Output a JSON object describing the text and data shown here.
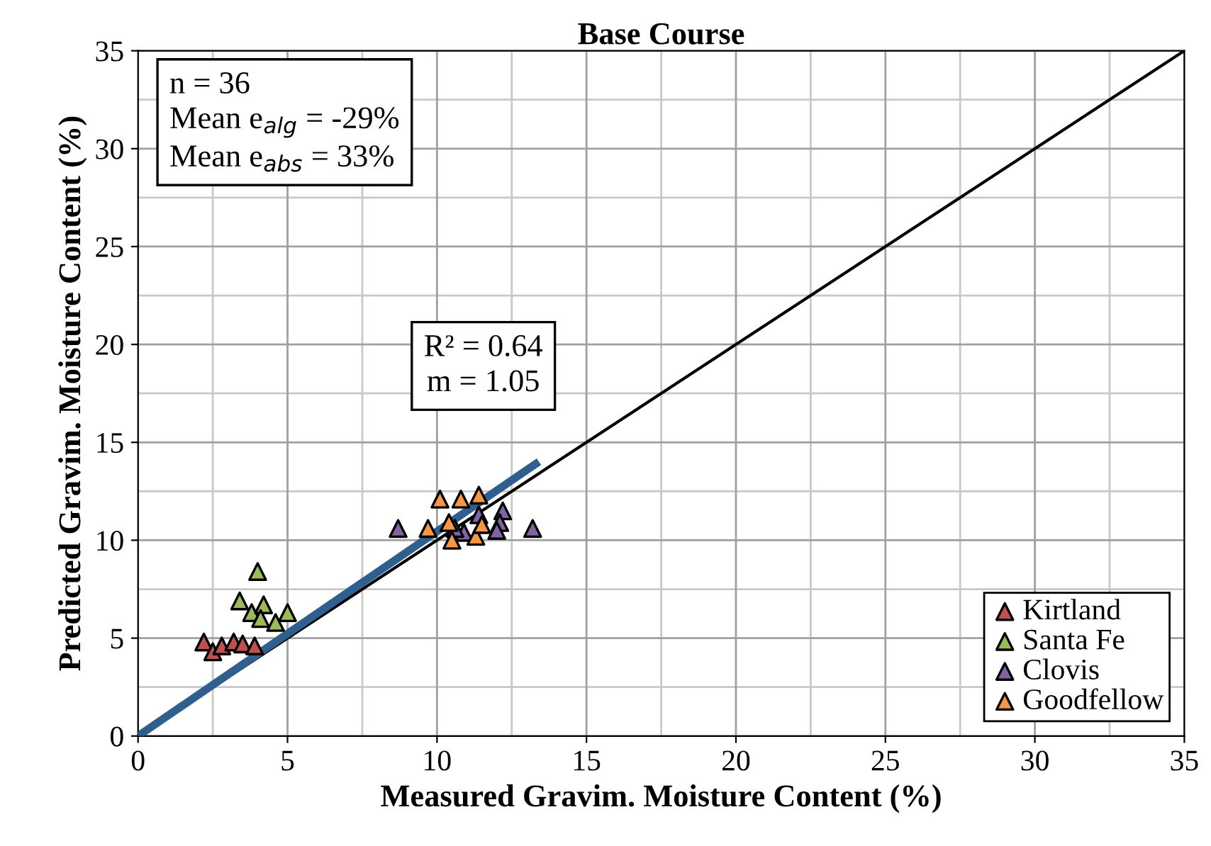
{
  "chart_data": {
    "type": "scatter",
    "title": "Base Course",
    "xlabel": "Measured Gravim. Moisture Content (%)",
    "ylabel": "Predicted Gravim. Moisture Content (%)",
    "xlim": [
      0,
      35
    ],
    "ylim": [
      0,
      35
    ],
    "xticks": [
      0,
      5,
      10,
      15,
      20,
      25,
      30,
      35
    ],
    "yticks": [
      0,
      5,
      10,
      15,
      20,
      25,
      30,
      35
    ],
    "grid": true,
    "legend": "bottom right",
    "marker": "triangle",
    "annotations": [
      "n = 36\nMean e$_{alg}$ = -29%\nMean e$_{abs}$ = 33%",
      "R² = 0.64\nm = 1.05"
    ],
    "series": [
      {
        "type": "line",
        "color": "#000000",
        "x": [
          0,
          35
        ],
        "values": [
          0,
          35
        ],
        "marker": "none"
      },
      {
        "type": "line",
        "color": "#2e5f8f",
        "x": [
          0,
          13.3
        ],
        "values": [
          0,
          13.9
        ],
        "marker": "none"
      },
      {
        "name": "Kirtland",
        "color": "#c0504d",
        "x": [
          2.2,
          2.5,
          2.8,
          3.1,
          3.2,
          3.5,
          3.9
        ],
        "values": [
          4.8,
          4.3,
          4.6,
          null,
          4.8,
          4.7,
          4.6
        ]
      },
      {
        "name": "Santa Fe",
        "color": "#9bbb59",
        "x": [
          4.0,
          3.4,
          3.8,
          4.1,
          4.2,
          4.1,
          4.6,
          5.0
        ],
        "values": [
          8.4,
          6.9,
          6.3,
          null,
          6.7,
          6.0,
          5.8,
          6.3
        ]
      },
      {
        "name": "Clovis",
        "color": "#8064a2",
        "x": [
          8.7,
          11.4,
          12.2,
          12.1,
          12.0,
          10.9,
          13.2,
          10.6
        ],
        "values": [
          10.6,
          11.3,
          11.5,
          10.9,
          10.5,
          10.4,
          10.6,
          10.6
        ]
      },
      {
        "name": "Goodfellow",
        "color": "#f79646",
        "x": [
          10.1,
          10.8,
          11.4,
          9.7,
          10.5,
          11.3,
          11.5,
          10.4
        ],
        "values": [
          12.1,
          12.1,
          12.3,
          10.6,
          10.0,
          10.2,
          10.8,
          10.9
        ]
      }
    ]
  }
}
